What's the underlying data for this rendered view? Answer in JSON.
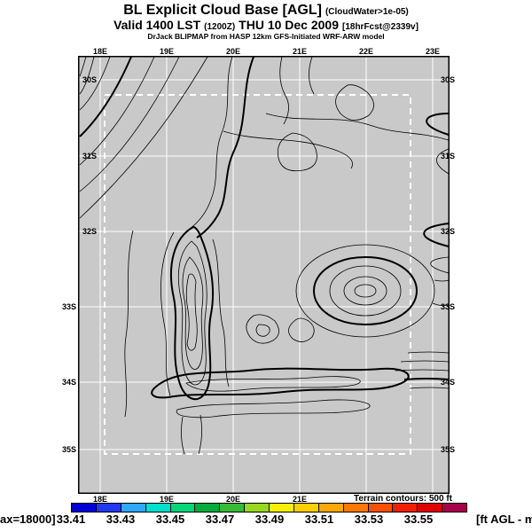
{
  "header": {
    "title": "BL Explicit Cloud Base [AGL]",
    "title_note": "(CloudWater>1e-05)",
    "valid_time": "Valid 1400 LST",
    "valid_zulu": "(1200Z)",
    "valid_date": "THU 10 Dec 2009",
    "fcst_note": "[18hrFcst@2339v]",
    "model_line": "DrJack BLIPMAP from HASP 12km GFS-Initiated WRF-ARW model"
  },
  "map": {
    "lon_ticks": [
      "18E",
      "19E",
      "20E",
      "21E",
      "22E",
      "23E"
    ],
    "lat_ticks": [
      "30S",
      "31S",
      "32S",
      "33S",
      "34S",
      "35S"
    ],
    "terrain_note": "Terrain contours: 500 ft",
    "colors": {
      "background": "#c9c9c9",
      "grid": "#ffffff",
      "contour": "#000000",
      "inner_domain_box": "#ffffff"
    }
  },
  "colorbar": {
    "labels": [
      "33.41",
      "33.43",
      "33.45",
      "33.47",
      "33.49",
      "33.51",
      "33.53",
      "33.55"
    ],
    "colors": [
      "#0000d8",
      "#2038f0",
      "#30a8f8",
      "#00e0cc",
      "#00d878",
      "#00ac3c",
      "#38bc38",
      "#98d820",
      "#f8f000",
      "#ffd000",
      "#ffa800",
      "#ff7800",
      "#f85000",
      "#f02000",
      "#e00000",
      "#a80048"
    ],
    "caption_left": "ax=18000]",
    "caption_right": "[ft AGL - m"
  },
  "chart_data": {
    "type": "contour_map",
    "title": "BL Explicit Cloud Base [AGL] (CloudWater>1e-05)",
    "valid": "Valid 1400 LST (1200Z) THU 10 Dec 2009 [18hrFcst@2339v]",
    "source": "DrJack BLIPMAP from HASP 12km GFS-Initiated WRF-ARW model",
    "x_axis": {
      "label_type": "longitude",
      "ticks": [
        "18E",
        "19E",
        "20E",
        "21E",
        "22E",
        "23E"
      ]
    },
    "y_axis": {
      "label_type": "latitude",
      "ticks": [
        "30S",
        "31S",
        "32S",
        "33S",
        "34S",
        "35S"
      ]
    },
    "terrain_contour_interval": "500 ft",
    "colorbar_scale_labels": [
      33.41,
      33.43,
      33.45,
      33.47,
      33.49,
      33.51,
      33.53,
      33.55
    ],
    "colorbar_units_wrapped_text": "[ft AGL - max=18000]",
    "grid": true,
    "inner_model_domain_box": true
  }
}
